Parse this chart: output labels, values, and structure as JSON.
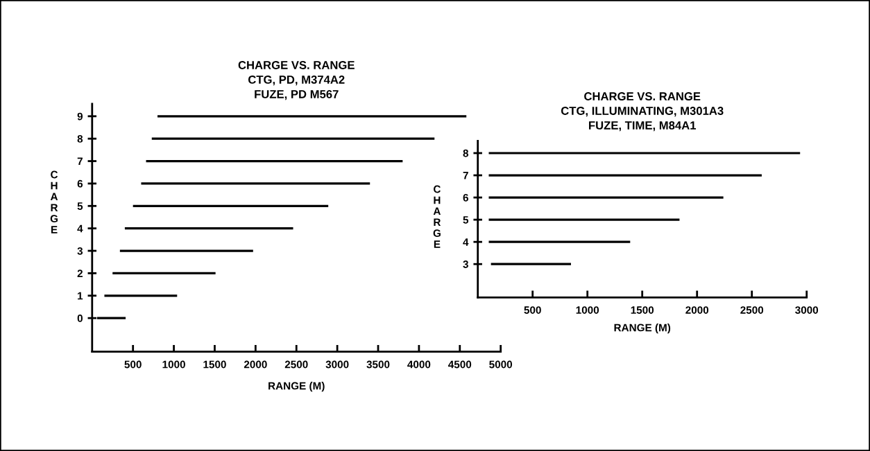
{
  "chart_data": [
    {
      "type": "bar",
      "orientation": "horizontal",
      "title": "CHARGE VS. RANGE\nCTG, PD, M374A2\nFUZE, PD M567",
      "xlabel": "RANGE (M)",
      "ylabel": "CHARGE",
      "categories": [
        "9",
        "8",
        "7",
        "6",
        "5",
        "4",
        "3",
        "2",
        "1",
        "0"
      ],
      "base": [
        800,
        730,
        660,
        600,
        500,
        400,
        340,
        250,
        150,
        60
      ],
      "values": [
        3780,
        3460,
        3140,
        2800,
        2390,
        2060,
        1630,
        1260,
        890,
        350
      ],
      "color": "#000000",
      "xlim": [
        0,
        5000
      ],
      "xticks": [
        500,
        1000,
        1500,
        2000,
        2500,
        3000,
        3500,
        4000,
        4500,
        5000
      ]
    },
    {
      "type": "bar",
      "orientation": "horizontal",
      "title": "CHARGE VS. RANGE\nCTG, ILLUMINATING, M301A3\nFUZE, TIME, M84A1",
      "xlabel": "RANGE (M)",
      "ylabel": "CHARGE",
      "categories": [
        "8",
        "7",
        "6",
        "5",
        "4",
        "3"
      ],
      "base": [
        100,
        100,
        100,
        100,
        100,
        120
      ],
      "values": [
        2840,
        2490,
        2140,
        1740,
        1290,
        730
      ],
      "color": "#000000",
      "xlim": [
        0,
        3000
      ],
      "xticks": [
        500,
        1000,
        1500,
        2000,
        2500,
        3000
      ]
    }
  ]
}
